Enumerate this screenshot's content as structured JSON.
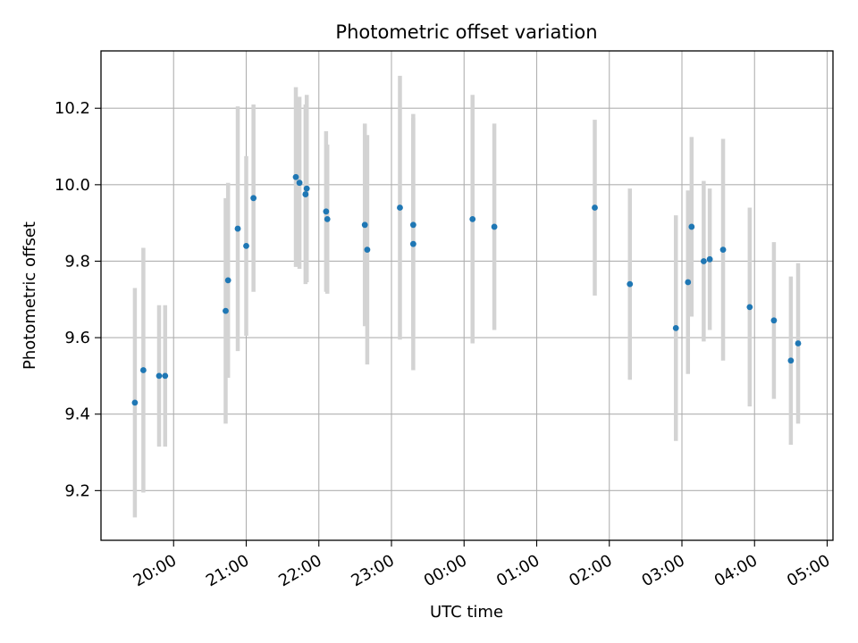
{
  "chart_data": {
    "type": "scatter",
    "title": "Photometric offset variation",
    "xlabel": "UTC time",
    "ylabel": "Photometric offset",
    "x_ticks": [
      "20:00",
      "21:00",
      "22:00",
      "23:00",
      "00:00",
      "01:00",
      "02:00",
      "03:00",
      "04:00",
      "05:00"
    ],
    "y_ticks": [
      "9.2",
      "9.4",
      "9.6",
      "9.8",
      "10.0",
      "10.2"
    ],
    "x_range_hours": [
      19.0,
      29.08
    ],
    "ylim": [
      9.07,
      10.35
    ],
    "grid": true,
    "colors": {
      "points": "#1f77b4",
      "error_bars": "#d3d3d3",
      "grid": "#b0b0b0"
    },
    "points": [
      {
        "t": "19:28",
        "y": 9.43,
        "err": 0.3
      },
      {
        "t": "19:35",
        "y": 9.515,
        "err": 0.32
      },
      {
        "t": "19:48",
        "y": 9.5,
        "err": 0.185
      },
      {
        "t": "19:53",
        "y": 9.5,
        "err": 0.185
      },
      {
        "t": "20:43",
        "y": 9.67,
        "err": 0.295
      },
      {
        "t": "20:45",
        "y": 9.75,
        "err": 0.255
      },
      {
        "t": "20:53",
        "y": 9.885,
        "err": 0.32
      },
      {
        "t": "21:00",
        "y": 9.84,
        "err": 0.235
      },
      {
        "t": "21:06",
        "y": 9.965,
        "err": 0.245
      },
      {
        "t": "21:41",
        "y": 10.02,
        "err": 0.235
      },
      {
        "t": "21:44",
        "y": 10.005,
        "err": 0.225
      },
      {
        "t": "21:49",
        "y": 9.975,
        "err": 0.235
      },
      {
        "t": "21:50",
        "y": 9.99,
        "err": 0.245
      },
      {
        "t": "22:06",
        "y": 9.93,
        "err": 0.21
      },
      {
        "t": "22:07",
        "y": 9.91,
        "err": 0.195
      },
      {
        "t": "22:38",
        "y": 9.895,
        "err": 0.265
      },
      {
        "t": "22:40",
        "y": 9.83,
        "err": 0.3
      },
      {
        "t": "23:07",
        "y": 9.94,
        "err": 0.345
      },
      {
        "t": "23:18",
        "y": 9.895,
        "err": 0.29
      },
      {
        "t": "23:18",
        "y": 9.845,
        "err": 0.33
      },
      {
        "t": "00:07",
        "y": 9.91,
        "err": 0.325
      },
      {
        "t": "00:25",
        "y": 9.89,
        "err": 0.27
      },
      {
        "t": "01:48",
        "y": 9.94,
        "err": 0.23
      },
      {
        "t": "02:17",
        "y": 9.74,
        "err": 0.25
      },
      {
        "t": "02:55",
        "y": 9.625,
        "err": 0.295
      },
      {
        "t": "03:05",
        "y": 9.745,
        "err": 0.24
      },
      {
        "t": "03:08",
        "y": 9.89,
        "err": 0.235
      },
      {
        "t": "03:18",
        "y": 9.8,
        "err": 0.21
      },
      {
        "t": "03:23",
        "y": 9.805,
        "err": 0.185
      },
      {
        "t": "03:34",
        "y": 9.83,
        "err": 0.29
      },
      {
        "t": "03:56",
        "y": 9.68,
        "err": 0.26
      },
      {
        "t": "04:16",
        "y": 9.645,
        "err": 0.205
      },
      {
        "t": "04:30",
        "y": 9.54,
        "err": 0.22
      },
      {
        "t": "04:36",
        "y": 9.585,
        "err": 0.21
      }
    ]
  }
}
